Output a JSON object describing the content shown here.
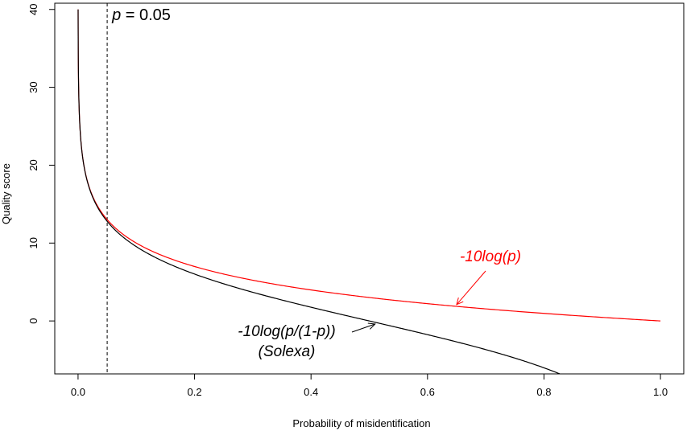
{
  "chart_data": {
    "type": "line",
    "xlabel": "Probability of misidentification",
    "ylabel": "Quality score",
    "xlim": [
      -0.04,
      1.04
    ],
    "ylim": [
      -6.8,
      40.8
    ],
    "x_ticks": [
      "0.0",
      "0.2",
      "0.4",
      "0.6",
      "0.8",
      "1.0"
    ],
    "y_ticks": [
      "0",
      "10",
      "20",
      "30",
      "40"
    ],
    "grid": false,
    "legend": "none",
    "series": [
      {
        "formula": "-10*log10(p)",
        "color": "#ff0000",
        "x": [
          0.0001,
          0.001,
          0.005,
          0.01,
          0.02,
          0.05,
          0.1,
          0.2,
          0.3,
          0.4,
          0.5,
          0.6,
          0.7,
          0.8,
          0.9,
          1.0
        ],
        "y": [
          40.0,
          30.0,
          23.01,
          20.0,
          16.99,
          13.01,
          10.0,
          6.99,
          5.23,
          3.98,
          3.01,
          2.22,
          1.55,
          0.97,
          0.46,
          0.0
        ]
      },
      {
        "formula": "-10*log10(p/(1-p))",
        "color": "#000000",
        "x": [
          0.0001,
          0.001,
          0.005,
          0.01,
          0.02,
          0.05,
          0.1,
          0.2,
          0.3,
          0.4,
          0.5,
          0.6,
          0.7,
          0.8,
          0.83
        ],
        "y": [
          40.0,
          30.0,
          22.99,
          19.96,
          16.9,
          12.79,
          9.54,
          6.02,
          3.68,
          1.76,
          0.0,
          -1.76,
          -3.68,
          -6.02,
          -6.89
        ]
      }
    ],
    "reference_line": {
      "x": 0.05,
      "label_var": "p",
      "label_rest": " = 0.05",
      "style": "dashed"
    },
    "annotations": [
      {
        "lines": [
          "-10log(p)"
        ],
        "color": "#ff0000",
        "arrow_to": [
          0.65,
          2.1
        ]
      },
      {
        "lines": [
          "-10log(p/(1-p))",
          "(Solexa)"
        ],
        "color": "#000000",
        "arrow_to": [
          0.51,
          -0.4
        ]
      }
    ]
  }
}
